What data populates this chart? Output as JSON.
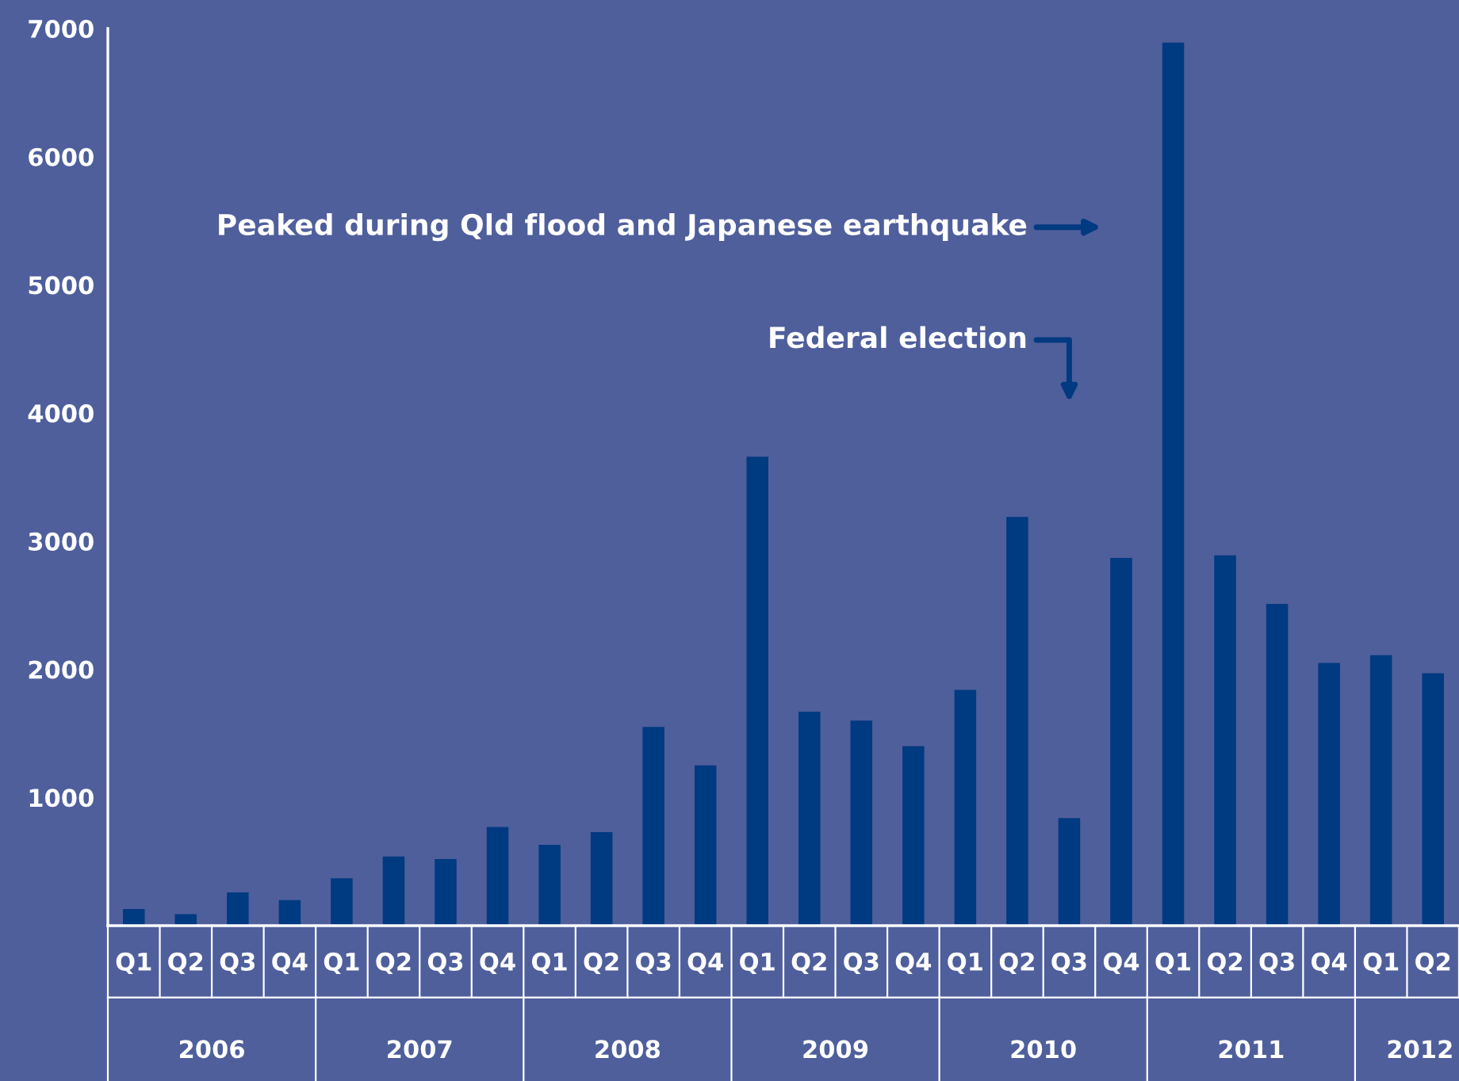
{
  "chart_data": {
    "type": "bar",
    "categories": [
      "Q1",
      "Q2",
      "Q3",
      "Q4",
      "Q1",
      "Q2",
      "Q3",
      "Q4",
      "Q1",
      "Q2",
      "Q3",
      "Q4",
      "Q1",
      "Q2",
      "Q3",
      "Q4",
      "Q1",
      "Q2",
      "Q3",
      "Q4",
      "Q1",
      "Q2",
      "Q3",
      "Q4",
      "Q1",
      "Q2"
    ],
    "values": [
      130,
      90,
      260,
      200,
      370,
      540,
      520,
      770,
      630,
      730,
      1550,
      1250,
      3660,
      1670,
      1600,
      1400,
      1840,
      3190,
      840,
      2870,
      6890,
      2890,
      2510,
      2050,
      2110,
      1970
    ],
    "color": "#003a80",
    "ylim": [
      0,
      7000
    ],
    "yticks": [
      1000,
      2000,
      3000,
      4000,
      5000,
      6000,
      7000
    ],
    "grid": false,
    "legend": false,
    "annotations": [
      "2006",
      "2007",
      "2008",
      "2009",
      "2010",
      "2011",
      "2012",
      "Peaked during Qld flood and Japanese earthquake",
      "Federal election"
    ]
  }
}
